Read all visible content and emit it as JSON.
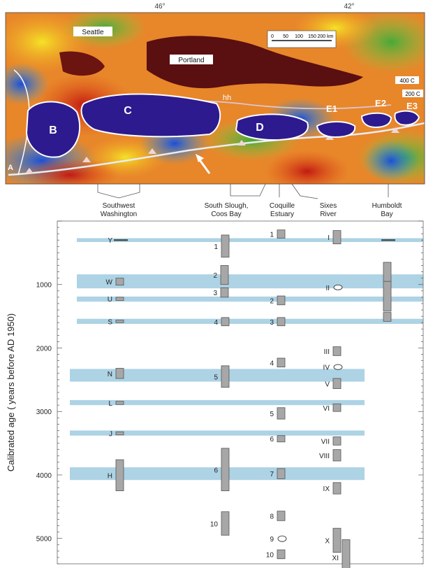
{
  "map": {
    "longitude_labels": [
      "46°",
      "42°"
    ],
    "cities": [
      "Seattle",
      "Portland"
    ],
    "scale_ticks": [
      "0",
      "50",
      "100",
      "150",
      "200 km"
    ],
    "legend_values": [
      "400 C",
      "200 C"
    ],
    "segment_labels": [
      "B",
      "C",
      "D",
      "E1",
      "E2",
      "E3"
    ],
    "other_labels": [
      "hh",
      "A"
    ]
  },
  "sites": [
    "Southwest Washington",
    "South Slough, Coos Bay",
    "Coquille Estuary",
    "Sixes River",
    "Humboldt Bay"
  ],
  "chart_data": {
    "type": "range-bars",
    "ylabel": "Calibrated age ( years before AD 1950)",
    "y_reversed": true,
    "ylim": [
      0,
      5400
    ],
    "y_ticks": [
      1000,
      2000,
      3000,
      4000,
      5000
    ],
    "correlated_bands": [
      {
        "center": 300,
        "half": 30
      },
      {
        "center": 950,
        "half": 110
      },
      {
        "center": 1230,
        "half": 40
      },
      {
        "center": 1580,
        "half": 40
      },
      {
        "center": 2430,
        "half": 100
      },
      {
        "center": 2860,
        "half": 40
      },
      {
        "center": 3340,
        "half": 40
      },
      {
        "center": 3980,
        "half": 100
      }
    ],
    "series": [
      {
        "name": "Southwest Washington",
        "events": [
          {
            "label": "Y",
            "min": 300,
            "max": 300
          },
          {
            "label": "W",
            "min": 900,
            "max": 1010
          },
          {
            "label": "U",
            "min": 1200,
            "max": 1250
          },
          {
            "label": "S",
            "min": 1560,
            "max": 1600
          },
          {
            "label": "N",
            "min": 2320,
            "max": 2480
          },
          {
            "label": "L",
            "min": 2840,
            "max": 2890
          },
          {
            "label": "J",
            "min": 3320,
            "max": 3370
          },
          {
            "label": "H",
            "min": 3760,
            "max": 4250
          }
        ]
      },
      {
        "name": "South Slough, Coos Bay",
        "events": [
          {
            "label": "1",
            "min": 220,
            "max": 570
          },
          {
            "label": "2",
            "min": 700,
            "max": 1000
          },
          {
            "label": "3",
            "min": 1050,
            "max": 1200
          },
          {
            "label": "4",
            "min": 1520,
            "max": 1650
          },
          {
            "label": "5",
            "min": 2280,
            "max": 2620
          },
          {
            "label": "6",
            "min": 3580,
            "max": 4250
          },
          {
            "label": "10",
            "min": 4580,
            "max": 4950
          }
        ]
      },
      {
        "name": "Coquille Estuary",
        "events": [
          {
            "label": "1",
            "min": 140,
            "max": 270
          },
          {
            "label": "2",
            "min": 1180,
            "max": 1320
          },
          {
            "label": "3",
            "min": 1520,
            "max": 1650
          },
          {
            "label": "4",
            "min": 2160,
            "max": 2300
          },
          {
            "label": "5",
            "min": 2940,
            "max": 3120
          },
          {
            "label": "6",
            "min": 3380,
            "max": 3480
          },
          {
            "label": "7",
            "min": 3900,
            "max": 4060
          },
          {
            "label": "8",
            "min": 4570,
            "max": 4720
          },
          {
            "label": "9",
            "min": 4960,
            "max": 5050,
            "shape": "ellipse"
          },
          {
            "label": "10",
            "min": 5180,
            "max": 5320
          }
        ]
      },
      {
        "name": "Sixes River",
        "events": [
          {
            "label": "I",
            "min": 150,
            "max": 360
          },
          {
            "label": "II",
            "min": 1010,
            "max": 1080,
            "shape": "ellipse"
          },
          {
            "label": "III",
            "min": 1980,
            "max": 2120
          },
          {
            "label": "IV",
            "min": 2260,
            "max": 2340,
            "shape": "ellipse"
          },
          {
            "label": "V",
            "min": 2480,
            "max": 2640
          },
          {
            "label": "VI",
            "min": 2880,
            "max": 3000
          },
          {
            "label": "VII",
            "min": 3400,
            "max": 3530
          },
          {
            "label": "VIII",
            "min": 3600,
            "max": 3780
          },
          {
            "label": "IX",
            "min": 4120,
            "max": 4300
          },
          {
            "label": "X",
            "min": 4840,
            "max": 5220
          },
          {
            "label": "XI",
            "min": 5020,
            "max": 5580
          }
        ]
      },
      {
        "name": "Humboldt Bay",
        "events": [
          {
            "label": "",
            "min": 300,
            "max": 300
          },
          {
            "label": "",
            "min": 650,
            "max": 1420
          },
          {
            "label": "",
            "min": 1440,
            "max": 1580
          }
        ]
      }
    ]
  }
}
